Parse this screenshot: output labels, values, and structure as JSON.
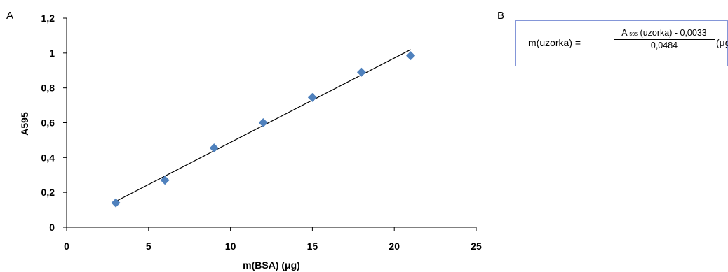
{
  "panel_a_label": "A",
  "panel_b_label": "B",
  "colors": {
    "marker": "#4f81bd",
    "trendline": "#000000",
    "axis": "#000000",
    "formula_border": "#8496d8"
  },
  "formula": {
    "lhs": "m(uzorka) =",
    "numerator_prefix": "A",
    "numerator_subscript": "595",
    "numerator_rest": " (uzorka) - 0,0033",
    "denominator": "0,0484",
    "unit": "(μg)"
  },
  "chart_data": {
    "type": "scatter",
    "xlabel": "m(BSA) (μg)",
    "ylabel": "A595",
    "xlim": [
      0,
      25
    ],
    "ylim": [
      0,
      1.2
    ],
    "x_ticks": [
      "0",
      "5",
      "10",
      "15",
      "20",
      "25"
    ],
    "y_ticks": [
      "0",
      "0,2",
      "0,4",
      "0,6",
      "0,8",
      "1",
      "1,2"
    ],
    "grid": false,
    "legend": "none",
    "points": [
      {
        "x": 3,
        "y": 0.14
      },
      {
        "x": 6,
        "y": 0.27
      },
      {
        "x": 9,
        "y": 0.455
      },
      {
        "x": 12,
        "y": 0.6
      },
      {
        "x": 15,
        "y": 0.745
      },
      {
        "x": 18,
        "y": 0.89
      },
      {
        "x": 21,
        "y": 0.985
      }
    ],
    "trendline": {
      "type": "linear",
      "slope": 0.0484,
      "intercept": 0.0033,
      "x_range": [
        3,
        21
      ]
    }
  }
}
